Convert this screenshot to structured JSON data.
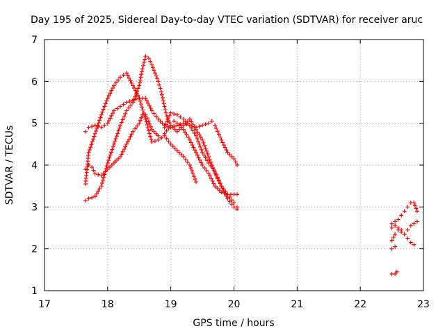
{
  "chart_data": {
    "type": "scatter",
    "title": "Day 195 of 2025, Sidereal Day-to-day VTEC variation (SDTVAR) for receiver aruc",
    "xlabel": "GPS time / hours",
    "ylabel": "SDTVAR / TECUs",
    "xlim": [
      17,
      23
    ],
    "ylim": [
      1,
      7
    ],
    "xticks": [
      "17",
      "18",
      "19",
      "20",
      "21",
      "22",
      "23"
    ],
    "yticks": [
      "1",
      "2",
      "3",
      "4",
      "5",
      "6",
      "7"
    ],
    "grid": true,
    "marker": "+",
    "color": "#ff0000",
    "series": [
      {
        "name": "track-1",
        "x": [
          17.65,
          17.7,
          17.8,
          17.9,
          18.0,
          18.1,
          18.2,
          18.3,
          18.4,
          18.5,
          18.6,
          18.7,
          18.8,
          18.9,
          19.0,
          19.1,
          19.2,
          19.3,
          19.4
        ],
        "y": [
          3.55,
          4.3,
          4.75,
          5.2,
          5.6,
          5.9,
          6.1,
          6.2,
          5.9,
          5.6,
          5.1,
          4.55,
          4.6,
          4.7,
          4.5,
          4.35,
          4.2,
          4.0,
          3.6
        ]
      },
      {
        "name": "track-2",
        "x": [
          17.65,
          17.7,
          17.75,
          17.8,
          17.9,
          18.0,
          18.1,
          18.2,
          18.3,
          18.4,
          18.5,
          18.55,
          18.6,
          18.65,
          18.7,
          18.8,
          18.85,
          18.9,
          19.0,
          19.05,
          19.1,
          19.2,
          19.3,
          19.4,
          19.5,
          19.6,
          19.7,
          19.8,
          19.9,
          20.0,
          20.05
        ],
        "y": [
          3.9,
          4.0,
          3.95,
          3.8,
          3.75,
          3.9,
          4.05,
          4.2,
          4.5,
          4.8,
          5.0,
          5.2,
          5.2,
          5.05,
          4.85,
          4.7,
          4.65,
          4.75,
          4.95,
          5.05,
          5.0,
          4.85,
          4.6,
          4.3,
          4.0,
          3.8,
          3.5,
          3.35,
          3.3,
          3.3,
          3.3
        ]
      },
      {
        "name": "track-3",
        "x": [
          17.65,
          17.7,
          17.8,
          17.9,
          18.0,
          18.1,
          18.2,
          18.3,
          18.4,
          18.5,
          18.6,
          18.7,
          18.8,
          18.9,
          19.0,
          19.1,
          19.2,
          19.3,
          19.4,
          19.5,
          19.6,
          19.7,
          19.8,
          19.9,
          20.0,
          20.05
        ],
        "y": [
          4.8,
          4.9,
          4.95,
          4.9,
          5.0,
          5.3,
          5.4,
          5.5,
          5.55,
          5.6,
          5.6,
          5.3,
          5.1,
          4.95,
          4.9,
          4.95,
          5.0,
          4.95,
          4.7,
          4.3,
          4.05,
          3.85,
          3.5,
          3.3,
          3.1,
          3.0
        ]
      },
      {
        "name": "track-4",
        "x": [
          17.65,
          17.7,
          17.8,
          17.9,
          18.0,
          18.1,
          18.2,
          18.3,
          18.4,
          18.5,
          18.55,
          18.6,
          18.65,
          18.7,
          18.75,
          18.8,
          18.85,
          18.9,
          18.95,
          19.0,
          19.1,
          19.2,
          19.3,
          19.4,
          19.5,
          19.6,
          19.7,
          19.8,
          19.9,
          20.0,
          20.05
        ],
        "y": [
          3.15,
          3.2,
          3.25,
          3.5,
          4.05,
          4.5,
          4.95,
          5.3,
          5.5,
          5.9,
          6.3,
          6.6,
          6.55,
          6.4,
          6.2,
          6.0,
          5.75,
          5.4,
          5.1,
          4.95,
          4.8,
          4.95,
          5.1,
          4.85,
          4.6,
          4.2,
          3.8,
          3.5,
          3.2,
          3.0,
          2.95
        ]
      },
      {
        "name": "track-5",
        "x": [
          18.9,
          19.0,
          19.1,
          19.2,
          19.3,
          19.4,
          19.5,
          19.6,
          19.65,
          19.7,
          19.8,
          19.9,
          20.0,
          20.05
        ],
        "y": [
          4.9,
          5.25,
          5.2,
          5.1,
          4.95,
          4.9,
          4.95,
          5.0,
          5.05,
          4.95,
          4.6,
          4.3,
          4.15,
          4.0
        ]
      },
      {
        "name": "track-6",
        "x": [
          22.5,
          22.55,
          22.6,
          22.65,
          22.7,
          22.75,
          22.8,
          22.85,
          22.9
        ],
        "y": [
          2.6,
          2.65,
          2.7,
          2.8,
          2.9,
          3.0,
          3.1,
          3.1,
          2.9
        ]
      },
      {
        "name": "track-7",
        "x": [
          22.5,
          22.55,
          22.6,
          22.65,
          22.7,
          22.75,
          22.8,
          22.85,
          22.9
        ],
        "y": [
          2.2,
          2.35,
          2.45,
          2.4,
          2.35,
          2.45,
          2.55,
          2.6,
          2.65
        ]
      },
      {
        "name": "track-8",
        "x": [
          22.5,
          22.55,
          22.6,
          22.65,
          22.7,
          22.75,
          22.8,
          22.85
        ],
        "y": [
          2.5,
          2.55,
          2.5,
          2.45,
          2.35,
          2.25,
          2.15,
          2.1
        ]
      },
      {
        "name": "track-9",
        "x": [
          22.5,
          22.55
        ],
        "y": [
          2.0,
          2.05
        ]
      },
      {
        "name": "track-10",
        "x": [
          22.5,
          22.55,
          22.58
        ],
        "y": [
          1.4,
          1.4,
          1.45
        ]
      }
    ]
  }
}
